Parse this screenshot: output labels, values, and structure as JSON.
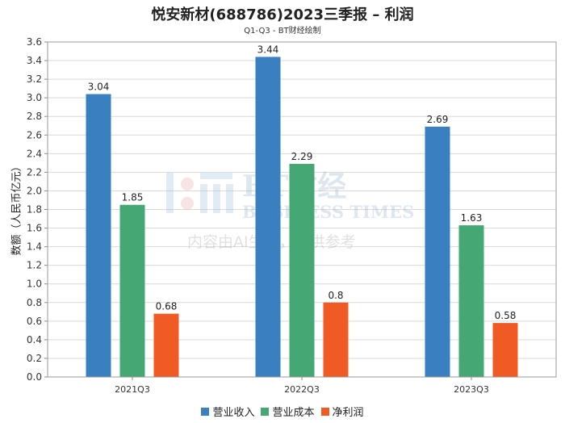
{
  "title": "悦安新材(688786)2023三季报 – 利润",
  "subtitle": "Q1-Q3 - BT财经绘制",
  "watermark": {
    "brand": "BT财经",
    "brand_en": "BUSINESS TIMES",
    "notice": "内容由AI生成，仅供参考"
  },
  "chart_data": {
    "type": "bar",
    "title": "悦安新材(688786)2023三季报 – 利润",
    "subtitle": "Q1-Q3 - BT财经绘制",
    "xlabel": "",
    "ylabel": "数额（人民币亿元）",
    "ylim": [
      0,
      3.6
    ],
    "ytick_step": 0.2,
    "yticks": [
      "0.0",
      "0.2",
      "0.4",
      "0.6",
      "0.8",
      "1.0",
      "1.2",
      "1.4",
      "1.6",
      "1.8",
      "2.0",
      "2.2",
      "2.4",
      "2.6",
      "2.8",
      "3.0",
      "3.2",
      "3.4",
      "3.6"
    ],
    "grid": true,
    "legend_position": "bottom",
    "categories": [
      "2021Q3",
      "2022Q3",
      "2023Q3"
    ],
    "series": [
      {
        "name": "营业收入",
        "color": "#3a80c0",
        "values": [
          3.04,
          3.44,
          2.69
        ],
        "labels": [
          "3.04",
          "3.44",
          "2.69"
        ]
      },
      {
        "name": "营业成本",
        "color": "#45a874",
        "values": [
          1.85,
          2.29,
          1.63
        ],
        "labels": [
          "1.85",
          "2.29",
          "1.63"
        ]
      },
      {
        "name": "净利润",
        "color": "#f05a24",
        "values": [
          0.68,
          0.8,
          0.58
        ],
        "labels": [
          "0.68",
          "0.8",
          "0.58"
        ]
      }
    ]
  }
}
